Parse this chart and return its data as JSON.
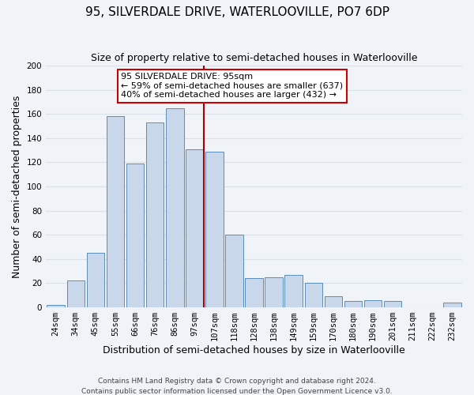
{
  "title": "95, SILVERDALE DRIVE, WATERLOOVILLE, PO7 6DP",
  "subtitle": "Size of property relative to semi-detached houses in Waterlooville",
  "xlabel": "Distribution of semi-detached houses by size in Waterlooville",
  "ylabel": "Number of semi-detached properties",
  "categories": [
    "24sqm",
    "34sqm",
    "45sqm",
    "55sqm",
    "66sqm",
    "76sqm",
    "86sqm",
    "97sqm",
    "107sqm",
    "118sqm",
    "128sqm",
    "138sqm",
    "149sqm",
    "159sqm",
    "170sqm",
    "180sqm",
    "190sqm",
    "201sqm",
    "211sqm",
    "222sqm",
    "232sqm"
  ],
  "values": [
    2,
    22,
    45,
    158,
    119,
    153,
    165,
    131,
    129,
    60,
    24,
    25,
    27,
    20,
    9,
    5,
    6,
    5,
    0,
    0,
    4
  ],
  "bar_color": "#c8d8ea",
  "bar_edge_color": "#5b8db8",
  "highlight_bar_index": 7,
  "highlight_line_color": "#aa0000",
  "ylim": [
    0,
    200
  ],
  "yticks": [
    0,
    20,
    40,
    60,
    80,
    100,
    120,
    140,
    160,
    180,
    200
  ],
  "annotation_title": "95 SILVERDALE DRIVE: 95sqm",
  "annotation_line1": "← 59% of semi-detached houses are smaller (637)",
  "annotation_line2": "40% of semi-detached houses are larger (432) →",
  "annotation_box_color": "#ffffff",
  "annotation_box_edge": "#cc0000",
  "footer1": "Contains HM Land Registry data © Crown copyright and database right 2024.",
  "footer2": "Contains public sector information licensed under the Open Government Licence v3.0.",
  "background_color": "#f0f4f8",
  "grid_color": "#d8e0e8",
  "title_fontsize": 11,
  "subtitle_fontsize": 9,
  "label_fontsize": 9,
  "tick_fontsize": 7.5,
  "footer_fontsize": 6.5,
  "annotation_fontsize": 8
}
